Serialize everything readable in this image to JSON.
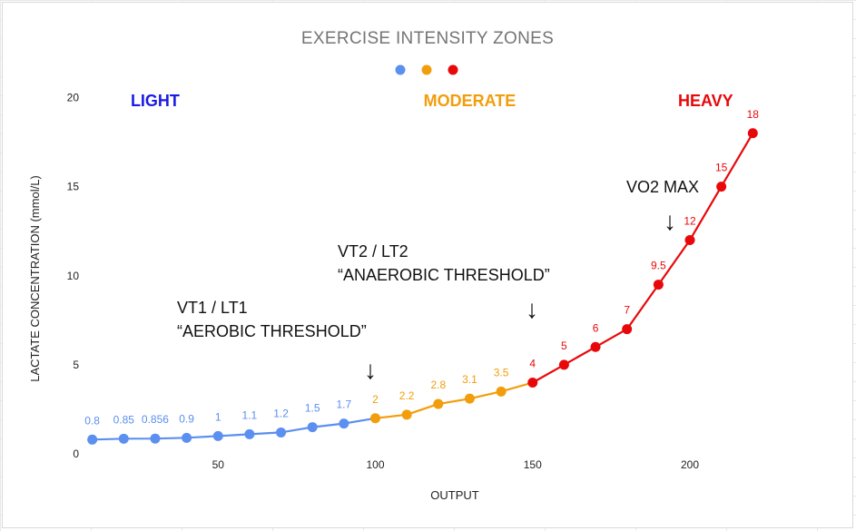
{
  "chart_data": {
    "type": "line",
    "title": "EXERCISE INTENSITY ZONES",
    "xlabel": "OUTPUT",
    "ylabel": "LACTATE CONCENTRATION (mmol/L)",
    "xlim": [
      0,
      230
    ],
    "ylim": [
      0,
      20
    ],
    "xticks": [
      50,
      100,
      150,
      200
    ],
    "yticks": [
      0,
      5,
      10,
      15,
      20
    ],
    "grid": false,
    "legend": {
      "placement": "top-center",
      "entries": []
    },
    "series": [
      {
        "color": "#5b8ff0",
        "points": [
          {
            "x": 10,
            "y": 0.8,
            "label": "0.8"
          },
          {
            "x": 20,
            "y": 0.85,
            "label": "0.85"
          },
          {
            "x": 30,
            "y": 0.856,
            "label": "0.856"
          },
          {
            "x": 40,
            "y": 0.9,
            "label": "0.9"
          },
          {
            "x": 50,
            "y": 1,
            "label": "1"
          },
          {
            "x": 60,
            "y": 1.1,
            "label": "1.1"
          },
          {
            "x": 70,
            "y": 1.2,
            "label": "1.2"
          },
          {
            "x": 80,
            "y": 1.5,
            "label": "1.5"
          },
          {
            "x": 90,
            "y": 1.7,
            "label": "1.7"
          }
        ]
      },
      {
        "color": "#f29d0c",
        "points": [
          {
            "x": 100,
            "y": 2,
            "label": "2"
          },
          {
            "x": 110,
            "y": 2.2,
            "label": "2.2"
          },
          {
            "x": 120,
            "y": 2.8,
            "label": "2.8"
          },
          {
            "x": 130,
            "y": 3.1,
            "label": "3.1"
          },
          {
            "x": 140,
            "y": 3.5,
            "label": "3.5"
          }
        ]
      },
      {
        "color": "#e8080a",
        "points": [
          {
            "x": 150,
            "y": 4,
            "label": "4"
          },
          {
            "x": 160,
            "y": 5,
            "label": "5"
          },
          {
            "x": 170,
            "y": 6,
            "label": "6"
          },
          {
            "x": 180,
            "y": 7,
            "label": "7"
          },
          {
            "x": 190,
            "y": 9.5,
            "label": "9.5"
          },
          {
            "x": 200,
            "y": 12,
            "label": "12"
          },
          {
            "x": 210,
            "y": 15,
            "label": "15"
          },
          {
            "x": 220,
            "y": 18,
            "label": "18"
          }
        ]
      }
    ],
    "zones": [
      {
        "label": "LIGHT",
        "color": "#1a1ae6",
        "x": 30
      },
      {
        "label": "MODERATE",
        "color": "#f29d0c",
        "x": 130
      },
      {
        "label": "HEAVY",
        "color": "#e8080a",
        "x": 205
      }
    ],
    "annotations": [
      {
        "lines": [
          "VT1 / LT1",
          "“AEROBIC THRESHOLD”"
        ],
        "arrow": "↓",
        "x": 100,
        "y": 2
      },
      {
        "lines": [
          "VT2 / LT2",
          "“ANAEROBIC THRESHOLD”"
        ],
        "arrow": "↓",
        "x": 150,
        "y": 4
      },
      {
        "lines": [
          "VO2 MAX"
        ],
        "arrow": "↓",
        "x": 200,
        "y": 12
      }
    ]
  }
}
